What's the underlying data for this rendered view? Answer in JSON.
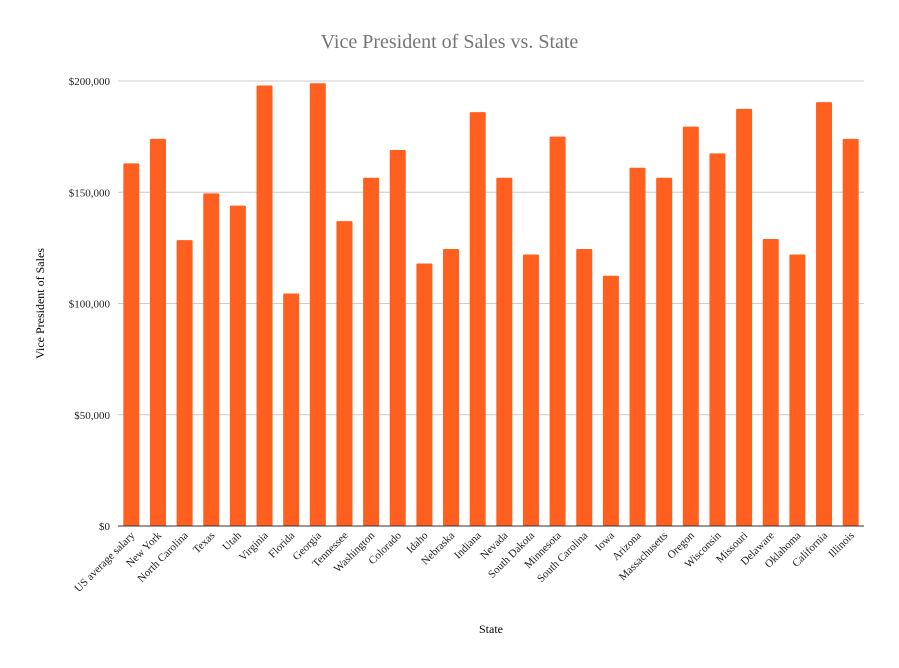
{
  "chart_data": {
    "type": "bar",
    "title": "Vice President of Sales vs. State",
    "xlabel": "State",
    "ylabel": "Vice President of Sales",
    "ylim": [
      0,
      200000
    ],
    "yticks": [
      0,
      50000,
      100000,
      150000,
      200000
    ],
    "ytick_labels": [
      "$0",
      "$50,000",
      "$100,000",
      "$150,000",
      "$200,000"
    ],
    "grid": true,
    "bar_color": "#ff5f1f",
    "categories": [
      "US average salary",
      "New York",
      "North Carolina",
      "Texas",
      "Utah",
      "Virginia",
      "Florida",
      "Georgia",
      "Tennessee",
      "Washington",
      "Colorado",
      "Idaho",
      "Nebraska",
      "Indiana",
      "Nevada",
      "South Dakota",
      "Minnesota",
      "South Carolina",
      "Iowa",
      "Arizona",
      "Massachusetts",
      "Oregon",
      "Wisconsin",
      "Missouri",
      "Delaware",
      "Oklahoma",
      "California",
      "Illinois"
    ],
    "values": [
      163000,
      174000,
      128500,
      149500,
      144000,
      198000,
      104500,
      199000,
      137000,
      156500,
      169000,
      118000,
      124500,
      186000,
      156500,
      122000,
      175000,
      124500,
      112500,
      161000,
      156500,
      179500,
      167500,
      187500,
      129000,
      122000,
      190500,
      174000
    ]
  }
}
